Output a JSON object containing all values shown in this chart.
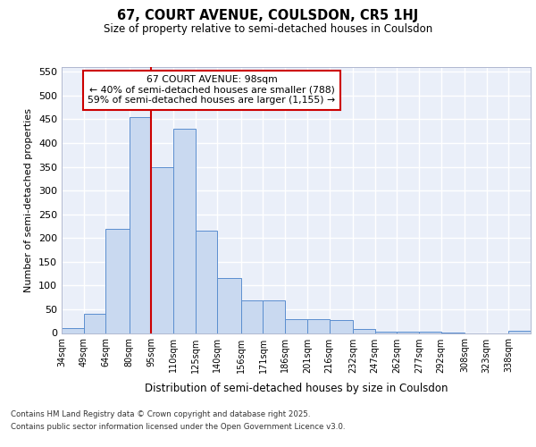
{
  "title1": "67, COURT AVENUE, COULSDON, CR5 1HJ",
  "title2": "Size of property relative to semi-detached houses in Coulsdon",
  "xlabel": "Distribution of semi-detached houses by size in Coulsdon",
  "ylabel": "Number of semi-detached properties",
  "bin_edges": [
    34,
    49,
    64,
    80,
    95,
    110,
    125,
    140,
    156,
    171,
    186,
    201,
    216,
    232,
    247,
    262,
    277,
    292,
    308,
    323,
    338
  ],
  "bar_heights": [
    10,
    40,
    220,
    455,
    350,
    430,
    215,
    115,
    68,
    68,
    30,
    30,
    27,
    8,
    3,
    3,
    2,
    1,
    0,
    0,
    5
  ],
  "bar_color": "#c9d9f0",
  "bar_edge_color": "#5b8ecf",
  "red_line_x": 95,
  "annotation_title": "67 COURT AVENUE: 98sqm",
  "annotation_line1": "← 40% of semi-detached houses are smaller (788)",
  "annotation_line2": "59% of semi-detached houses are larger (1,155) →",
  "annotation_box_color": "#ffffff",
  "annotation_border_color": "#cc0000",
  "ylim": [
    0,
    560
  ],
  "yticks": [
    0,
    50,
    100,
    150,
    200,
    250,
    300,
    350,
    400,
    450,
    500,
    550
  ],
  "background_color": "#eaeff9",
  "grid_color": "#ffffff",
  "footer1": "Contains HM Land Registry data © Crown copyright and database right 2025.",
  "footer2": "Contains public sector information licensed under the Open Government Licence v3.0.",
  "tick_labels": [
    "34sqm",
    "49sqm",
    "64sqm",
    "80sqm",
    "95sqm",
    "110sqm",
    "125sqm",
    "140sqm",
    "156sqm",
    "171sqm",
    "186sqm",
    "201sqm",
    "216sqm",
    "232sqm",
    "247sqm",
    "262sqm",
    "277sqm",
    "292sqm",
    "308sqm",
    "323sqm",
    "338sqm"
  ]
}
